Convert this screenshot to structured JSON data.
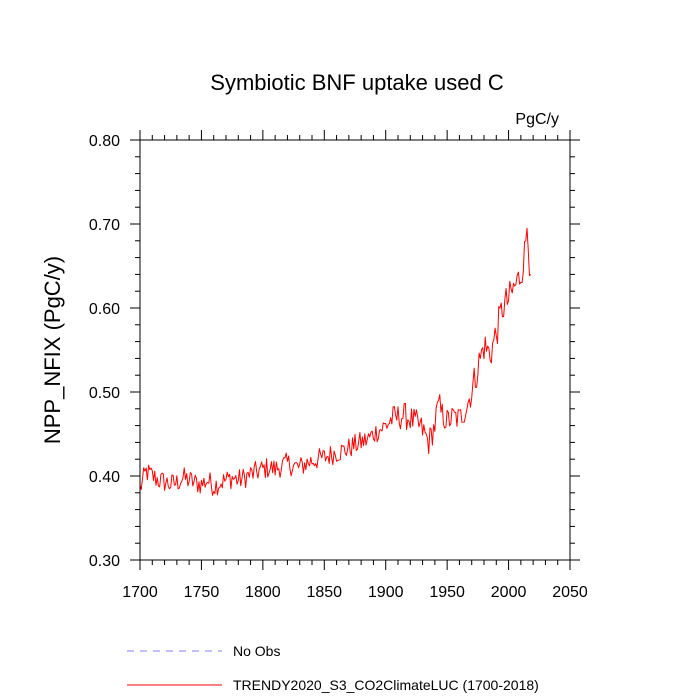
{
  "chart_data": {
    "type": "line",
    "title": "Symbiotic BNF uptake used C",
    "units_label": "PgC/y",
    "ylabel": "NPP_NFIX  (PgC/y)",
    "xlabel": "",
    "xlim": [
      1700,
      2050
    ],
    "ylim": [
      0.3,
      0.8
    ],
    "x_ticks": [
      1700,
      1750,
      1800,
      1850,
      1900,
      1950,
      2000,
      2050
    ],
    "x_tick_labels": [
      "1700",
      "1750",
      "1800",
      "1850",
      "1900",
      "1950",
      "2000",
      "2050"
    ],
    "y_ticks": [
      0.3,
      0.4,
      0.5,
      0.6,
      0.7,
      0.8
    ],
    "y_tick_labels": [
      "0.30",
      "0.40",
      "0.50",
      "0.60",
      "0.70",
      "0.80"
    ],
    "legend": [
      {
        "label": "No Obs",
        "color": "#8080ff",
        "style": "dashed"
      },
      {
        "label": "TRENDY2020_S3_CO2ClimateLUC (1700-2018)",
        "color": "#ff0000",
        "style": "solid"
      }
    ],
    "legend_placement": "bottom-left",
    "series": [
      {
        "name": "TRENDY2020_S3_CO2ClimateLUC (1700-2018)",
        "color": "#ff0000",
        "x": [
          1700,
          1705,
          1710,
          1715,
          1720,
          1725,
          1730,
          1735,
          1740,
          1745,
          1750,
          1755,
          1760,
          1765,
          1770,
          1775,
          1780,
          1785,
          1790,
          1795,
          1800,
          1805,
          1810,
          1815,
          1820,
          1825,
          1830,
          1835,
          1840,
          1845,
          1850,
          1855,
          1860,
          1865,
          1870,
          1875,
          1880,
          1885,
          1890,
          1895,
          1900,
          1905,
          1910,
          1915,
          1920,
          1925,
          1930,
          1935,
          1940,
          1943,
          1945,
          1950,
          1955,
          1960,
          1965,
          1970,
          1975,
          1980,
          1985,
          1990,
          1995,
          2000,
          2005,
          2010,
          2013,
          2015,
          2018
        ],
        "y": [
          0.385,
          0.405,
          0.4,
          0.395,
          0.393,
          0.39,
          0.392,
          0.398,
          0.395,
          0.392,
          0.39,
          0.395,
          0.388,
          0.392,
          0.395,
          0.398,
          0.395,
          0.398,
          0.402,
          0.405,
          0.408,
          0.41,
          0.408,
          0.412,
          0.415,
          0.412,
          0.41,
          0.415,
          0.418,
          0.42,
          0.422,
          0.425,
          0.428,
          0.43,
          0.433,
          0.437,
          0.44,
          0.443,
          0.45,
          0.455,
          0.46,
          0.468,
          0.47,
          0.472,
          0.468,
          0.463,
          0.455,
          0.44,
          0.46,
          0.49,
          0.475,
          0.465,
          0.47,
          0.468,
          0.48,
          0.5,
          0.53,
          0.555,
          0.545,
          0.57,
          0.6,
          0.61,
          0.625,
          0.64,
          0.665,
          0.695,
          0.64
        ]
      }
    ]
  }
}
